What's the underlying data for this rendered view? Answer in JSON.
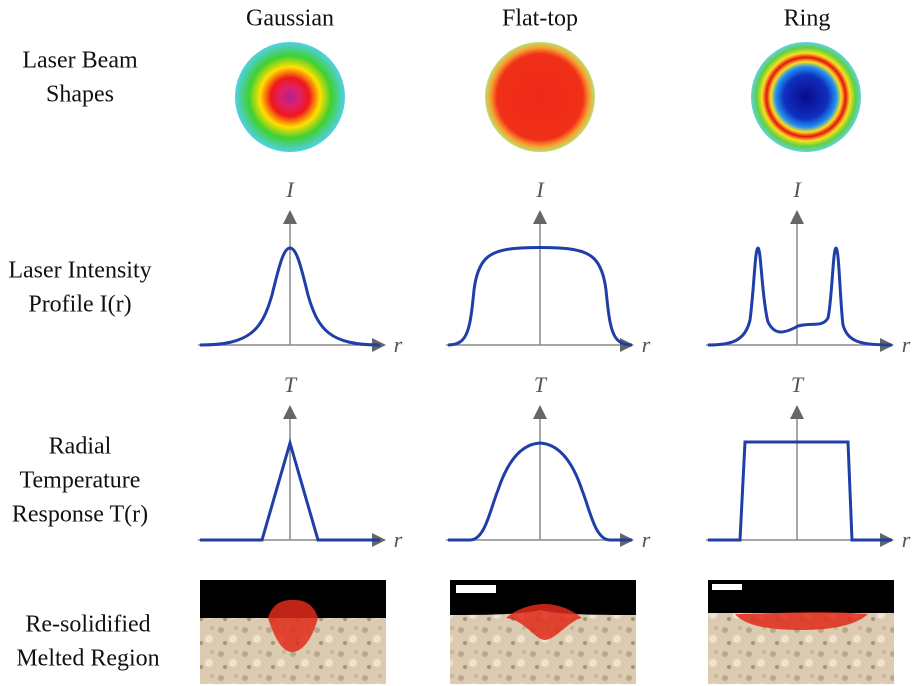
{
  "columns": [
    "Gaussian",
    "Flat-top",
    "Ring"
  ],
  "rows": [
    {
      "lines": [
        "Laser Beam",
        "Shapes"
      ]
    },
    {
      "lines": [
        "Laser Intensity",
        "Profile I(r)"
      ]
    },
    {
      "lines": [
        "Radial",
        "Temperature",
        "Response T(r)"
      ]
    },
    {
      "lines": [
        "Re-solidified",
        "Melted Region"
      ]
    }
  ],
  "intensity_plots": [
    {
      "y_label": "I",
      "x_label": "r"
    },
    {
      "y_label": "I",
      "x_label": "r"
    },
    {
      "y_label": "I",
      "x_label": "r"
    }
  ],
  "temperature_plots": [
    {
      "y_label": "T",
      "x_label": "r"
    },
    {
      "y_label": "T",
      "x_label": "r"
    },
    {
      "y_label": "T",
      "x_label": "r"
    }
  ]
}
